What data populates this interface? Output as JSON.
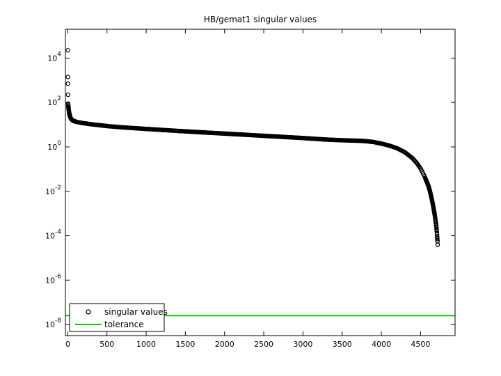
{
  "chart_data": {
    "type": "scatter",
    "title": "HB/gemat1 singular values",
    "xlabel": "",
    "ylabel": "",
    "xlim": [
      -30,
      4940
    ],
    "ylim_log10": [
      -8.5,
      5.3
    ],
    "yscale": "log",
    "grid": false,
    "legend_position": "bottom-left",
    "x_ticks": [
      {
        "value": 0,
        "label": "0"
      },
      {
        "value": 500,
        "label": "500"
      },
      {
        "value": 1000,
        "label": "1000"
      },
      {
        "value": 1500,
        "label": "1500"
      },
      {
        "value": 2000,
        "label": "2000"
      },
      {
        "value": 2500,
        "label": "2500"
      },
      {
        "value": 3000,
        "label": "3000"
      },
      {
        "value": 3500,
        "label": "3500"
      },
      {
        "value": 4000,
        "label": "4000"
      },
      {
        "value": 4500,
        "label": "4500"
      }
    ],
    "y_ticks": [
      {
        "exp": 4,
        "base": "10",
        "sup": "4"
      },
      {
        "exp": 2,
        "base": "10",
        "sup": "2"
      },
      {
        "exp": 0,
        "base": "10",
        "sup": "0"
      },
      {
        "exp": -2,
        "base": "10",
        "sup": "-2"
      },
      {
        "exp": -4,
        "base": "10",
        "sup": "-4"
      },
      {
        "exp": -6,
        "base": "10",
        "sup": "-6"
      },
      {
        "exp": -8,
        "base": "10",
        "sup": "-8"
      }
    ],
    "series": [
      {
        "name": "singular values",
        "marker": "circle",
        "color": "#000000",
        "points_log10": [
          [
            1,
            4.35
          ],
          [
            2,
            3.15
          ],
          [
            3,
            2.85
          ],
          [
            4,
            2.35
          ],
          [
            5,
            1.95
          ],
          [
            6,
            1.9
          ],
          [
            7,
            1.85
          ],
          [
            8,
            1.8
          ],
          [
            10,
            1.75
          ],
          [
            12,
            1.68
          ],
          [
            15,
            1.6
          ],
          [
            20,
            1.5
          ],
          [
            25,
            1.42
          ],
          [
            30,
            1.36
          ],
          [
            40,
            1.28
          ],
          [
            50,
            1.23
          ],
          [
            70,
            1.18
          ],
          [
            100,
            1.14
          ],
          [
            150,
            1.1
          ],
          [
            200,
            1.07
          ],
          [
            300,
            1.02
          ],
          [
            400,
            0.98
          ],
          [
            500,
            0.94
          ],
          [
            700,
            0.88
          ],
          [
            1000,
            0.81
          ],
          [
            1500,
            0.7
          ],
          [
            2000,
            0.6
          ],
          [
            2500,
            0.5
          ],
          [
            3000,
            0.4
          ],
          [
            3300,
            0.33
          ],
          [
            3500,
            0.3
          ],
          [
            3700,
            0.28
          ],
          [
            3800,
            0.26
          ],
          [
            3900,
            0.22
          ],
          [
            4000,
            0.15
          ],
          [
            4100,
            0.06
          ],
          [
            4200,
            -0.06
          ],
          [
            4300,
            -0.24
          ],
          [
            4400,
            -0.52
          ],
          [
            4450,
            -0.72
          ],
          [
            4500,
            -0.97
          ],
          [
            4550,
            -1.32
          ],
          [
            4600,
            -1.76
          ],
          [
            4620,
            -2.0
          ],
          [
            4640,
            -2.3
          ],
          [
            4660,
            -2.65
          ],
          [
            4680,
            -3.05
          ],
          [
            4690,
            -3.3
          ],
          [
            4700,
            -3.55
          ],
          [
            4705,
            -3.75
          ],
          [
            4710,
            -3.95
          ],
          [
            4713,
            -4.1
          ],
          [
            4716,
            -4.25
          ],
          [
            4718,
            -4.4
          ]
        ]
      },
      {
        "name": "tolerance",
        "marker": "line",
        "color": "#00cc00",
        "value_log10": -7.6
      }
    ]
  }
}
